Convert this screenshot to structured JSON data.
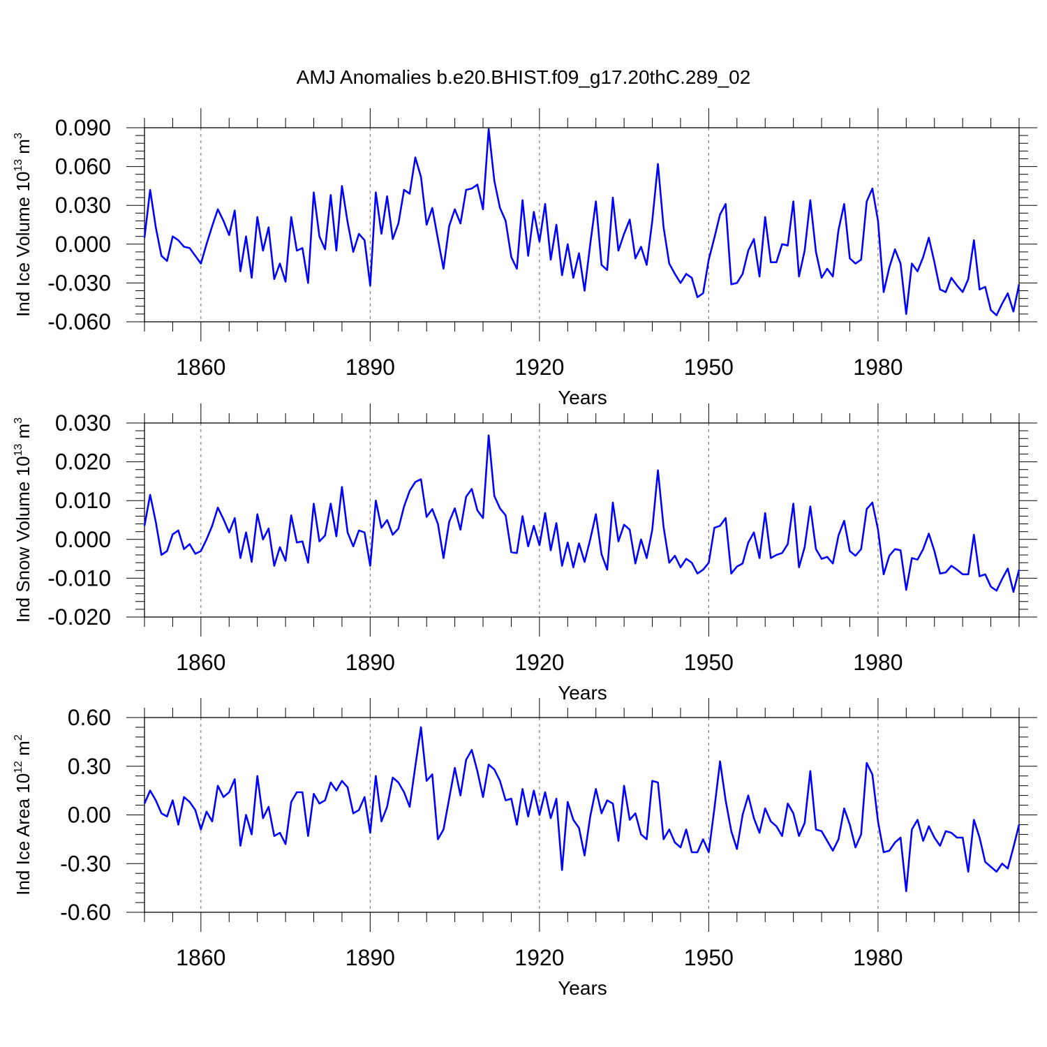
{
  "figure": {
    "title": "AMJ Anomalies b.e20.BHIST.f09_g17.20thC.289_02"
  },
  "style": {
    "line_color": "#0000ff",
    "axis_color": "#000000",
    "grid_color": "#666666"
  },
  "chart_data": [
    {
      "type": "line",
      "name": "ice-volume",
      "xlabel": "Years",
      "ylabel": {
        "main": "Ind Ice Volume 10",
        "sup": "13",
        "unit": " m",
        "unit_sup": "3"
      },
      "xlim": [
        1850,
        2005
      ],
      "ylim": [
        -0.06,
        0.09
      ],
      "x_ticks": [
        1860,
        1890,
        1920,
        1950,
        1980
      ],
      "x_tick_labels": [
        "1860",
        "1890",
        "1920",
        "1950",
        "1980"
      ],
      "y_ticks": [
        -0.06,
        -0.03,
        0.0,
        0.03,
        0.06,
        0.09
      ],
      "y_tick_labels": [
        "-0.060",
        "-0.030",
        "0.000",
        "0.030",
        "0.060",
        "0.090"
      ],
      "x_start": 1850,
      "y": [
        0.005,
        0.042,
        0.013,
        -0.009,
        -0.013,
        0.006,
        0.003,
        -0.002,
        -0.003,
        -0.009,
        -0.015,
        0.0,
        0.014,
        0.027,
        0.018,
        0.007,
        0.026,
        -0.021,
        0.006,
        -0.026,
        0.021,
        -0.005,
        0.013,
        -0.027,
        -0.015,
        -0.029,
        0.021,
        -0.005,
        -0.003,
        -0.03,
        0.04,
        0.006,
        -0.004,
        0.038,
        -0.005,
        0.045,
        0.017,
        -0.006,
        0.008,
        0.003,
        -0.032,
        0.04,
        0.008,
        0.037,
        0.004,
        0.016,
        0.042,
        0.039,
        0.067,
        0.052,
        0.015,
        0.028,
        0.004,
        -0.019,
        0.014,
        0.027,
        0.016,
        0.042,
        0.043,
        0.046,
        0.027,
        0.089,
        0.049,
        0.028,
        0.018,
        -0.01,
        -0.019,
        0.034,
        -0.009,
        0.025,
        0.002,
        0.031,
        -0.012,
        0.015,
        -0.024,
        0.0,
        -0.026,
        -0.007,
        -0.036,
        0.0,
        0.033,
        -0.016,
        -0.02,
        0.036,
        -0.005,
        0.008,
        0.019,
        -0.011,
        -0.002,
        -0.016,
        0.018,
        0.062,
        0.013,
        -0.015,
        -0.023,
        -0.03,
        -0.023,
        -0.026,
        -0.041,
        -0.038,
        -0.012,
        0.005,
        0.023,
        0.031,
        -0.031,
        -0.03,
        -0.023,
        -0.005,
        0.004,
        -0.025,
        0.021,
        -0.014,
        -0.014,
        0.0,
        -0.001,
        0.033,
        -0.025,
        -0.005,
        0.034,
        -0.006,
        -0.026,
        -0.019,
        -0.025,
        0.011,
        0.031,
        -0.011,
        -0.015,
        -0.012,
        0.033,
        0.043,
        0.018,
        -0.037,
        -0.018,
        -0.004,
        -0.015,
        -0.054,
        -0.015,
        -0.021,
        -0.01,
        0.005,
        -0.014,
        -0.035,
        -0.037,
        -0.026,
        -0.032,
        -0.037,
        -0.027,
        0.003,
        -0.035,
        -0.033,
        -0.051,
        -0.055,
        -0.046,
        -0.038,
        -0.052,
        -0.031
      ]
    },
    {
      "type": "line",
      "name": "snow-volume",
      "xlabel": "Years",
      "ylabel": {
        "main": "Ind Snow Volume 10",
        "sup": "13",
        "unit": " m",
        "unit_sup": "3"
      },
      "xlim": [
        1850,
        2005
      ],
      "ylim": [
        -0.02,
        0.03
      ],
      "x_ticks": [
        1860,
        1890,
        1920,
        1950,
        1980
      ],
      "x_tick_labels": [
        "1860",
        "1890",
        "1920",
        "1950",
        "1980"
      ],
      "y_ticks": [
        -0.02,
        -0.01,
        0.0,
        0.01,
        0.02,
        0.03
      ],
      "y_tick_labels": [
        "-0.020",
        "-0.010",
        "0.000",
        "0.010",
        "0.020",
        "0.030"
      ],
      "x_start": 1850,
      "y": [
        0.0035,
        0.0115,
        0.0045,
        -0.004,
        -0.003,
        0.0013,
        0.0023,
        -0.0025,
        -0.0012,
        -0.0037,
        -0.003,
        0.0,
        0.0035,
        0.0082,
        0.0052,
        0.0018,
        0.0055,
        -0.0048,
        0.0018,
        -0.0058,
        0.0065,
        0.0,
        0.0028,
        -0.0068,
        -0.002,
        -0.0055,
        0.0062,
        -0.0008,
        -0.0005,
        -0.006,
        0.0092,
        -0.0005,
        0.001,
        0.0092,
        0.0008,
        0.0135,
        0.0018,
        -0.0018,
        0.0023,
        0.0018,
        -0.0068,
        0.01,
        0.003,
        0.005,
        0.0012,
        0.0028,
        0.0085,
        0.0125,
        0.0148,
        0.0155,
        0.0058,
        0.0078,
        0.004,
        -0.0048,
        0.0045,
        0.008,
        0.0025,
        0.011,
        0.013,
        0.0075,
        0.0055,
        0.0268,
        0.0112,
        0.008,
        0.0062,
        -0.0033,
        -0.0035,
        0.006,
        -0.0018,
        0.0035,
        -0.0015,
        0.0068,
        -0.0028,
        0.0042,
        -0.0068,
        -0.0008,
        -0.0072,
        -0.001,
        -0.0058,
        0.0,
        0.0065,
        -0.0038,
        -0.0078,
        0.0095,
        -0.0005,
        0.0038,
        0.0025,
        -0.0062,
        0.0,
        -0.0048,
        0.0025,
        0.0178,
        0.0032,
        -0.006,
        -0.0042,
        -0.0072,
        -0.005,
        -0.006,
        -0.0088,
        -0.0078,
        -0.006,
        0.003,
        0.0035,
        0.0055,
        -0.0088,
        -0.007,
        -0.0062,
        -0.0008,
        0.0018,
        -0.0048,
        0.0068,
        -0.0048,
        -0.004,
        -0.0035,
        -0.0012,
        0.0092,
        -0.0072,
        -0.002,
        0.0085,
        -0.0025,
        -0.005,
        -0.0045,
        -0.0062,
        0.001,
        0.0048,
        -0.003,
        -0.0042,
        -0.0025,
        0.0078,
        0.0095,
        0.0025,
        -0.009,
        -0.0042,
        -0.0025,
        -0.0028,
        -0.013,
        -0.0048,
        -0.0052,
        -0.0025,
        0.0015,
        -0.003,
        -0.0088,
        -0.0085,
        -0.0068,
        -0.0078,
        -0.009,
        -0.009,
        0.0012,
        -0.0095,
        -0.009,
        -0.0122,
        -0.0132,
        -0.0102,
        -0.0075,
        -0.0135,
        -0.0078
      ]
    },
    {
      "type": "line",
      "name": "ice-area",
      "xlabel": "Years",
      "ylabel": {
        "main": "Ind Ice Area 10",
        "sup": "12",
        "unit": " m",
        "unit_sup": "2"
      },
      "xlim": [
        1850,
        2005
      ],
      "ylim": [
        -0.6,
        0.6
      ],
      "x_ticks": [
        1860,
        1890,
        1920,
        1950,
        1980
      ],
      "x_tick_labels": [
        "1860",
        "1890",
        "1920",
        "1950",
        "1980"
      ],
      "y_ticks": [
        -0.6,
        -0.3,
        0.0,
        0.3,
        0.6
      ],
      "y_tick_labels": [
        "-0.60",
        "-0.30",
        "0.00",
        "0.30",
        "0.60"
      ],
      "x_start": 1850,
      "y": [
        0.07,
        0.15,
        0.09,
        0.01,
        -0.01,
        0.09,
        -0.06,
        0.11,
        0.08,
        0.03,
        -0.09,
        0.02,
        -0.04,
        0.18,
        0.11,
        0.14,
        0.22,
        -0.19,
        0.0,
        -0.12,
        0.24,
        -0.02,
        0.05,
        -0.13,
        -0.11,
        -0.18,
        0.08,
        0.14,
        0.14,
        -0.13,
        0.13,
        0.07,
        0.09,
        0.2,
        0.15,
        0.21,
        0.17,
        0.01,
        0.03,
        0.11,
        -0.11,
        0.24,
        -0.04,
        0.05,
        0.23,
        0.2,
        0.14,
        0.05,
        0.3,
        0.54,
        0.21,
        0.25,
        -0.15,
        -0.09,
        0.1,
        0.29,
        0.12,
        0.34,
        0.4,
        0.27,
        0.11,
        0.31,
        0.28,
        0.21,
        0.09,
        0.1,
        -0.06,
        0.16,
        -0.01,
        0.15,
        0.0,
        0.14,
        -0.02,
        0.1,
        -0.34,
        0.08,
        -0.03,
        -0.08,
        -0.25,
        -0.01,
        0.16,
        0.01,
        0.09,
        0.07,
        -0.16,
        0.18,
        -0.03,
        0.01,
        -0.12,
        -0.15,
        0.21,
        0.2,
        -0.15,
        -0.09,
        -0.17,
        -0.2,
        -0.09,
        -0.23,
        -0.23,
        -0.15,
        -0.23,
        0.04,
        0.33,
        0.09,
        -0.1,
        -0.21,
        0.0,
        0.12,
        -0.02,
        -0.11,
        0.04,
        -0.04,
        -0.07,
        -0.13,
        0.07,
        0.01,
        -0.13,
        -0.05,
        0.27,
        -0.09,
        -0.1,
        -0.16,
        -0.22,
        -0.15,
        0.04,
        -0.06,
        -0.2,
        -0.12,
        0.32,
        0.25,
        -0.04,
        -0.23,
        -0.22,
        -0.17,
        -0.14,
        -0.47,
        -0.09,
        -0.03,
        -0.16,
        -0.07,
        -0.14,
        -0.19,
        -0.1,
        -0.11,
        -0.14,
        -0.14,
        -0.35,
        -0.03,
        -0.14,
        -0.29,
        -0.32,
        -0.35,
        -0.3,
        -0.33,
        -0.2,
        -0.06
      ]
    }
  ]
}
